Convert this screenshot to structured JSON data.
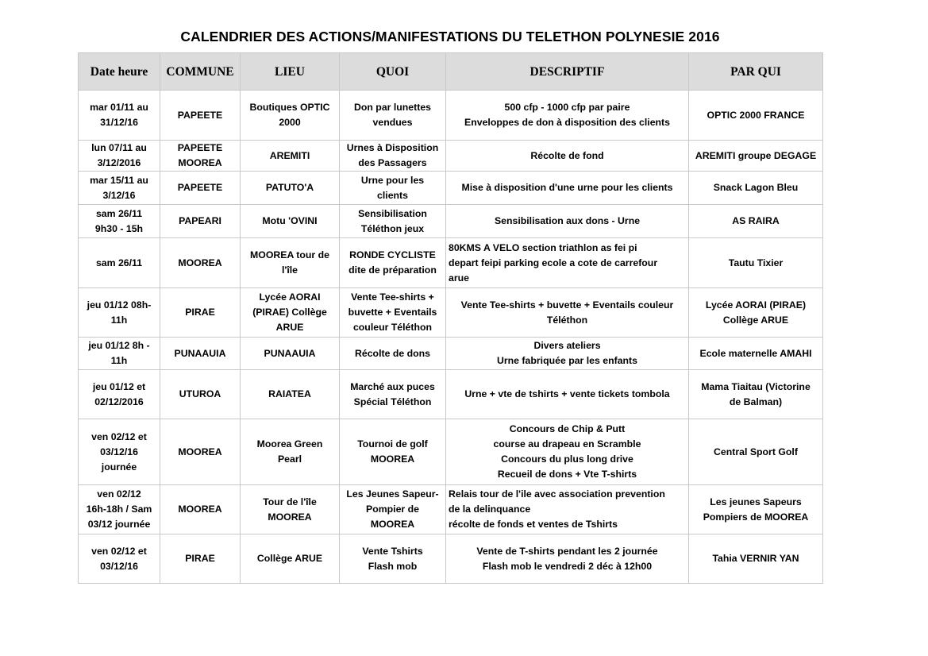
{
  "title": "CALENDRIER DES ACTIONS/MANIFESTATIONS DU TELETHON POLYNESIE 2016",
  "columns": [
    "Date heure",
    "COMMUNE",
    "LIEU",
    "QUOI",
    "DESCRIPTIF",
    "PAR QUI"
  ],
  "rows": [
    [
      "mar 01/11 au\n31/12/16",
      "PAPEETE",
      "Boutiques OPTIC\n2000",
      "Don par lunettes\nvendues",
      "500 cfp - 1000 cfp par paire\nEnveloppes de don à disposition des clients",
      "OPTIC 2000 FRANCE"
    ],
    [
      "lun 07/11 au\n3/12/2016",
      "PAPEETE\nMOOREA",
      "AREMITI",
      "Urnes à Disposition\ndes Passagers",
      "Récolte de fond",
      "AREMITI groupe DEGAGE"
    ],
    [
      "mar 15/11 au\n3/12/16",
      "PAPEETE",
      "PATUTO'A",
      "Urne pour les\nclients",
      "Mise à disposition d'une urne pour les clients",
      "Snack Lagon Bleu"
    ],
    [
      "sam 26/11\n9h30 - 15h",
      "PAPEARI",
      "Motu 'OVINI",
      "Sensibilisation\nTéléthon jeux",
      "Sensibilisation aux dons - Urne",
      "AS RAIRA"
    ],
    [
      "sam 26/11",
      "MOOREA",
      "MOOREA tour de\nl'île",
      "RONDE CYCLISTE\ndite de préparation",
      "80KMS A VELO section triathlon as fei pi\ndepart feipi parking ecole a cote de carrefour\narue",
      "Tautu Tixier"
    ],
    [
      "jeu 01/12 08h-\n11h",
      "PIRAE",
      "Lycée AORAI\n(PIRAE) Collège\nARUE",
      "Vente Tee-shirts +\nbuvette + Eventails\ncouleur Téléthon",
      "Vente Tee-shirts + buvette + Eventails couleur\nTéléthon",
      "Lycée AORAI (PIRAE)\nCollège ARUE"
    ],
    [
      "jeu 01/12 8h -\n11h",
      "PUNAAUIA",
      "PUNAAUIA",
      "Récolte de dons",
      "Divers ateliers\nUrne fabriquée par les enfants",
      "Ecole maternelle AMAHI"
    ],
    [
      "jeu 01/12 et\n02/12/2016",
      "UTUROA",
      "RAIATEA",
      "Marché aux puces\nSpécial Téléthon",
      "Urne + vte de tshirts + vente tickets tombola",
      "Mama Tiaitau (Victorine\nde Balman)"
    ],
    [
      "ven 02/12 et\n03/12/16\njournée",
      "MOOREA",
      "Moorea Green\nPearl",
      "Tournoi de golf\nMOOREA",
      "Concours de Chip & Putt\ncourse au drapeau en Scramble\nConcours du plus long drive\nRecueil de dons + Vte T-shirts",
      "Central Sport Golf"
    ],
    [
      "ven 02/12\n16h-18h / Sam\n03/12 journée",
      "MOOREA",
      "Tour de l'île\nMOOREA",
      "Les Jeunes Sapeur-\nPompier de\nMOOREA",
      "Relais tour de l'ile avec association prevention\nde la delinquance\nrécolte de fonds et ventes de Tshirts",
      "Les jeunes Sapeurs\nPompiers de MOOREA"
    ],
    [
      "ven 02/12  et\n03/12/16",
      "PIRAE",
      "Collège ARUE",
      "Vente Tshirts\nFlash mob",
      "Vente de T-shirts pendant les 2 journée\nFlash mob le vendredi 2 déc à 12h00",
      "Tahia VERNIR YAN"
    ]
  ]
}
